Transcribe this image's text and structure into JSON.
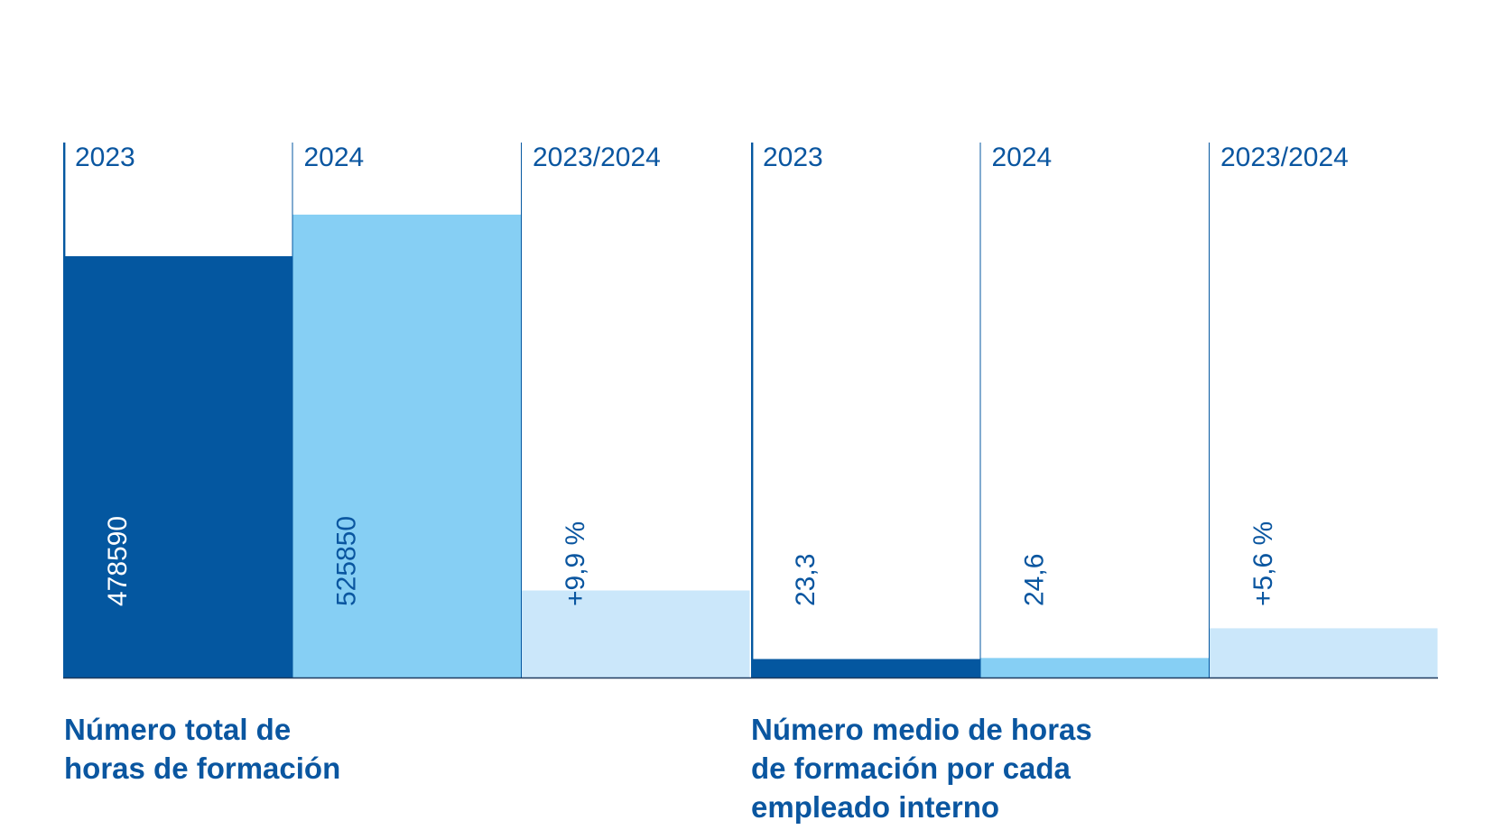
{
  "colors": {
    "dark": "#0457a0",
    "light": "#86cff4",
    "pale": "#cbe7fa",
    "text_blue": "#0a56a0",
    "text_white": "#ffffff"
  },
  "chart_data": [
    {
      "type": "bar",
      "title": "Número total de\nhoras de formación",
      "categories": [
        "2023",
        "2024",
        "2023/2024"
      ],
      "values": [
        478590,
        525850,
        9.9
      ],
      "value_labels": [
        "478590",
        "525850",
        "+9,9 %"
      ],
      "units": [
        "hours",
        "hours",
        "percent"
      ]
    },
    {
      "type": "bar",
      "title": "Número medio de horas\nde formación por cada\nempleado interno",
      "categories": [
        "2023",
        "2024",
        "2023/2024"
      ],
      "values": [
        23.3,
        24.6,
        5.6
      ],
      "value_labels": [
        "23,3",
        "24,6",
        "+5,6 %"
      ],
      "units": [
        "hours",
        "hours",
        "percent"
      ]
    }
  ]
}
